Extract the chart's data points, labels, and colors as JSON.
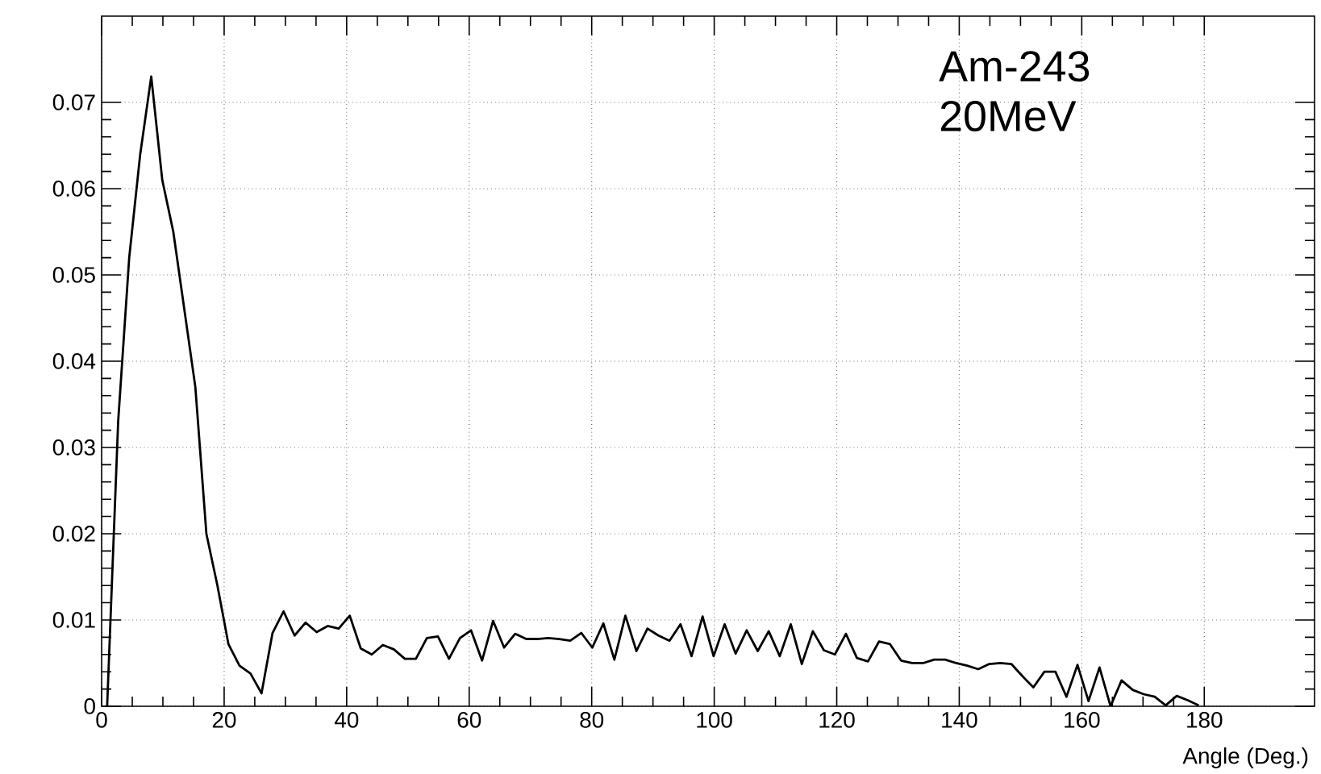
{
  "chart_data": {
    "type": "line",
    "xlabel": "Angle (Deg.)",
    "annotations": [
      "Am-243",
      "20MeV"
    ],
    "x": [
      0.9,
      2.7,
      4.5,
      6.3,
      8.1,
      9.9,
      11.7,
      13.5,
      15.3,
      17.1,
      18.9,
      20.7,
      22.5,
      24.3,
      26.1,
      27.9,
      29.7,
      31.5,
      33.3,
      35.1,
      36.9,
      38.7,
      40.5,
      42.3,
      44.1,
      45.9,
      47.7,
      49.5,
      51.3,
      53.1,
      54.9,
      56.7,
      58.5,
      60.3,
      62.1,
      63.9,
      65.7,
      67.5,
      69.3,
      71.1,
      72.9,
      74.7,
      76.5,
      78.3,
      80.1,
      81.9,
      83.7,
      85.5,
      87.3,
      89.1,
      90.9,
      92.7,
      94.5,
      96.3,
      98.1,
      99.9,
      101.7,
      103.5,
      105.3,
      107.1,
      108.9,
      110.7,
      112.5,
      114.3,
      116.1,
      117.9,
      119.7,
      121.5,
      123.3,
      125.1,
      126.9,
      128.7,
      130.5,
      132.3,
      134.1,
      135.9,
      137.7,
      139.5,
      141.3,
      143.1,
      144.9,
      146.7,
      148.5,
      150.3,
      152.1,
      153.9,
      155.7,
      157.5,
      159.3,
      161.1,
      162.9,
      164.7,
      166.5,
      168.3,
      170.1,
      171.9,
      173.7,
      175.5,
      177.3,
      179.1
    ],
    "series": [
      {
        "color": "#000000",
        "values": [
          0,
          0.033,
          0.052,
          0.064,
          0.073,
          0.061,
          0.055,
          0.046,
          0.037,
          0.02,
          0.014,
          0.0072,
          0.0047,
          0.0038,
          0.0015,
          0.0085,
          0.011,
          0.0082,
          0.0097,
          0.0086,
          0.0093,
          0.009,
          0.0105,
          0.0067,
          0.006,
          0.0071,
          0.0066,
          0.0055,
          0.0055,
          0.0079,
          0.0081,
          0.0055,
          0.0079,
          0.0088,
          0.0053,
          0.0099,
          0.0068,
          0.0084,
          0.0078,
          0.0078,
          0.0079,
          0.0078,
          0.0076,
          0.0085,
          0.0068,
          0.0096,
          0.0054,
          0.0105,
          0.0064,
          0.009,
          0.0082,
          0.0076,
          0.0095,
          0.0058,
          0.0104,
          0.0058,
          0.0095,
          0.0061,
          0.0088,
          0.0064,
          0.0087,
          0.0058,
          0.0095,
          0.0049,
          0.0087,
          0.0065,
          0.006,
          0.0084,
          0.0056,
          0.0052,
          0.0075,
          0.0072,
          0.0053,
          0.005,
          0.005,
          0.0054,
          0.0054,
          0.005,
          0.0047,
          0.0043,
          0.0049,
          0.005,
          0.0049,
          0.0035,
          0.0022,
          0.004,
          0.004,
          0.0011,
          0.0048,
          0.0006,
          0.0045,
          0,
          0.003,
          0.0019,
          0.0014,
          0.0011,
          0.0001,
          0.0012,
          0.0007,
          0.0001
        ]
      }
    ],
    "xlim": [
      0,
      198
    ],
    "ylim": [
      0,
      0.08
    ],
    "xticks": [
      0,
      20,
      40,
      60,
      80,
      100,
      120,
      140,
      160,
      180
    ],
    "yticks": [
      0,
      0.01,
      0.02,
      0.03,
      0.04,
      0.05,
      0.06,
      0.07
    ],
    "grid": true,
    "marker": "none",
    "line_style": "solid"
  }
}
